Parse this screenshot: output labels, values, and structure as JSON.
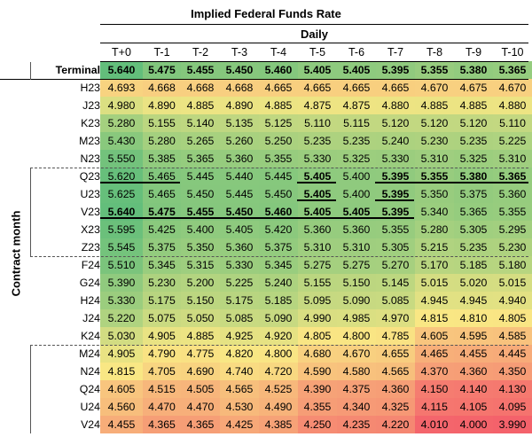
{
  "chart_data": {
    "type": "heatmap",
    "title": "Implied Federal Funds Rate",
    "subtitle": "Daily",
    "ylabel": "Contract month",
    "columns": [
      "T+0",
      "T-1",
      "T-2",
      "T-3",
      "T-4",
      "T-5",
      "T-6",
      "T-7",
      "T-8",
      "T-9",
      "T-10"
    ],
    "color_scale": {
      "low": "#f4626b",
      "mid": "#f9e784",
      "high": "#63be7b"
    },
    "rows": [
      {
        "label": "Terminal",
        "values": [
          5.64,
          5.475,
          5.455,
          5.45,
          5.46,
          5.405,
          5.405,
          5.395,
          5.355,
          5.38,
          5.365
        ]
      },
      {
        "label": "H23",
        "values": [
          4.693,
          4.668,
          4.668,
          4.668,
          4.665,
          4.665,
          4.665,
          4.665,
          4.67,
          4.675,
          4.67
        ]
      },
      {
        "label": "J23",
        "values": [
          4.98,
          4.89,
          4.885,
          4.89,
          4.885,
          4.875,
          4.875,
          4.88,
          4.885,
          4.885,
          4.88
        ]
      },
      {
        "label": "K23",
        "values": [
          5.28,
          5.155,
          5.14,
          5.135,
          5.125,
          5.11,
          5.115,
          5.12,
          5.12,
          5.12,
          5.11
        ]
      },
      {
        "label": "M23",
        "values": [
          5.43,
          5.28,
          5.265,
          5.26,
          5.25,
          5.235,
          5.235,
          5.24,
          5.23,
          5.235,
          5.225
        ]
      },
      {
        "label": "N23",
        "values": [
          5.55,
          5.385,
          5.365,
          5.36,
          5.355,
          5.33,
          5.325,
          5.33,
          5.31,
          5.325,
          5.31
        ]
      },
      {
        "label": "Q23",
        "values": [
          5.62,
          5.465,
          5.445,
          5.44,
          5.445,
          5.405,
          5.4,
          5.395,
          5.355,
          5.38,
          5.365
        ]
      },
      {
        "label": "U23",
        "values": [
          5.625,
          5.465,
          5.45,
          5.445,
          5.45,
          5.405,
          5.4,
          5.395,
          5.35,
          5.375,
          5.36
        ]
      },
      {
        "label": "V23",
        "values": [
          5.64,
          5.475,
          5.455,
          5.45,
          5.46,
          5.405,
          5.405,
          5.395,
          5.34,
          5.365,
          5.355
        ]
      },
      {
        "label": "X23",
        "values": [
          5.595,
          5.425,
          5.4,
          5.405,
          5.42,
          5.36,
          5.36,
          5.355,
          5.28,
          5.305,
          5.295
        ]
      },
      {
        "label": "Z23",
        "values": [
          5.545,
          5.375,
          5.35,
          5.36,
          5.375,
          5.31,
          5.31,
          5.305,
          5.215,
          5.235,
          5.23
        ]
      },
      {
        "label": "F24",
        "values": [
          5.51,
          5.345,
          5.315,
          5.33,
          5.345,
          5.275,
          5.275,
          5.27,
          5.17,
          5.185,
          5.18
        ]
      },
      {
        "label": "G24",
        "values": [
          5.39,
          5.23,
          5.2,
          5.225,
          5.24,
          5.155,
          5.15,
          5.145,
          5.015,
          5.02,
          5.015
        ]
      },
      {
        "label": "H24",
        "values": [
          5.33,
          5.175,
          5.15,
          5.175,
          5.185,
          5.095,
          5.09,
          5.085,
          4.945,
          4.945,
          4.94
        ]
      },
      {
        "label": "J24",
        "values": [
          5.22,
          5.075,
          5.05,
          5.085,
          5.09,
          4.99,
          4.985,
          4.97,
          4.815,
          4.81,
          4.805
        ]
      },
      {
        "label": "K24",
        "values": [
          5.03,
          4.905,
          4.885,
          4.925,
          4.92,
          4.805,
          4.8,
          4.785,
          4.605,
          4.595,
          4.585
        ]
      },
      {
        "label": "M24",
        "values": [
          4.905,
          4.79,
          4.775,
          4.82,
          4.8,
          4.68,
          4.67,
          4.655,
          4.465,
          4.455,
          4.445
        ]
      },
      {
        "label": "N24",
        "values": [
          4.815,
          4.705,
          4.69,
          4.74,
          4.72,
          4.59,
          4.58,
          4.565,
          4.37,
          4.36,
          4.35
        ]
      },
      {
        "label": "Q24",
        "values": [
          4.605,
          4.515,
          4.505,
          4.565,
          4.525,
          4.39,
          4.375,
          4.36,
          4.15,
          4.14,
          4.13
        ]
      },
      {
        "label": "U24",
        "values": [
          4.56,
          4.47,
          4.47,
          4.53,
          4.49,
          4.355,
          4.34,
          4.325,
          4.115,
          4.105,
          4.095
        ]
      },
      {
        "label": "V24",
        "values": [
          4.455,
          4.365,
          4.365,
          4.425,
          4.385,
          4.25,
          4.235,
          4.22,
          4.01,
          4.0,
          3.99
        ]
      }
    ]
  }
}
